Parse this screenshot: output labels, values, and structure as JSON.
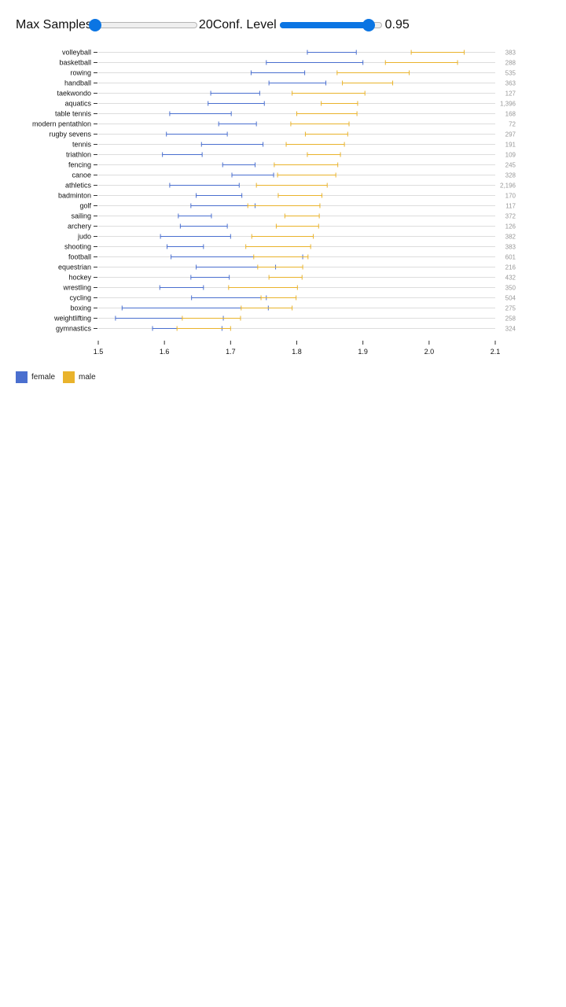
{
  "controls": {
    "max_samples": {
      "label": "Max Samples",
      "value": "20",
      "fraction": 0.0
    },
    "conf_level": {
      "label": "Conf. Level",
      "value": "0.95",
      "fraction": 0.87
    }
  },
  "colors": {
    "female": "#4a6fcf",
    "male": "#e9b32c",
    "grid": "#dddddd",
    "count": "#999999"
  },
  "chart_data": {
    "type": "errorbar",
    "title": "",
    "xlabel": "",
    "ylabel": "",
    "xlim": [
      1.5,
      2.1
    ],
    "xticks": [
      "1.5",
      "1.6",
      "1.7",
      "1.8",
      "1.9",
      "2.0",
      "2.1"
    ],
    "grid": true,
    "legend_position": "bottom-left",
    "series_names": [
      "female",
      "male"
    ],
    "categories": [
      {
        "sport": "volleyball",
        "count": "383",
        "female": [
          1.816,
          1.89
        ],
        "male": [
          1.973,
          2.053
        ]
      },
      {
        "sport": "basketball",
        "count": "288",
        "female": [
          1.754,
          1.9
        ],
        "male": [
          1.934,
          2.043
        ]
      },
      {
        "sport": "rowing",
        "count": "535",
        "female": [
          1.731,
          1.812
        ],
        "male": [
          1.861,
          1.97
        ]
      },
      {
        "sport": "handball",
        "count": "363",
        "female": [
          1.758,
          1.844
        ],
        "male": [
          1.869,
          1.945
        ]
      },
      {
        "sport": "taekwondo",
        "count": "127",
        "female": [
          1.67,
          1.744
        ],
        "male": [
          1.793,
          1.903
        ]
      },
      {
        "sport": "aquatics",
        "count": "1,396",
        "female": [
          1.666,
          1.751
        ],
        "male": [
          1.837,
          1.892
        ]
      },
      {
        "sport": "table tennis",
        "count": "168",
        "female": [
          1.608,
          1.701
        ],
        "male": [
          1.8,
          1.891
        ]
      },
      {
        "sport": "modern pentathlon",
        "count": "72",
        "female": [
          1.682,
          1.739
        ],
        "male": [
          1.791,
          1.879
        ]
      },
      {
        "sport": "rugby sevens",
        "count": "297",
        "female": [
          1.603,
          1.695
        ],
        "male": [
          1.813,
          1.877
        ]
      },
      {
        "sport": "tennis",
        "count": "191",
        "female": [
          1.656,
          1.749
        ],
        "male": [
          1.784,
          1.872
        ]
      },
      {
        "sport": "triathlon",
        "count": "109",
        "female": [
          1.597,
          1.657
        ],
        "male": [
          1.816,
          1.866
        ]
      },
      {
        "sport": "fencing",
        "count": "245",
        "female": [
          1.688,
          1.737
        ],
        "male": [
          1.766,
          1.862
        ]
      },
      {
        "sport": "canoe",
        "count": "328",
        "female": [
          1.702,
          1.765
        ],
        "male": [
          1.771,
          1.859
        ]
      },
      {
        "sport": "athletics",
        "count": "2,196",
        "female": [
          1.608,
          1.713
        ],
        "male": [
          1.739,
          1.846
        ]
      },
      {
        "sport": "badminton",
        "count": "170",
        "female": [
          1.648,
          1.717
        ],
        "male": [
          1.772,
          1.838
        ]
      },
      {
        "sport": "golf",
        "count": "117",
        "female": [
          1.64,
          1.737
        ],
        "male": [
          1.726,
          1.835
        ]
      },
      {
        "sport": "sailing",
        "count": "372",
        "female": [
          1.621,
          1.671
        ],
        "male": [
          1.782,
          1.834
        ]
      },
      {
        "sport": "archery",
        "count": "126",
        "female": [
          1.624,
          1.695
        ],
        "male": [
          1.769,
          1.833
        ]
      },
      {
        "sport": "judo",
        "count": "382",
        "female": [
          1.594,
          1.7
        ],
        "male": [
          1.732,
          1.825
        ]
      },
      {
        "sport": "shooting",
        "count": "383",
        "female": [
          1.604,
          1.659
        ],
        "male": [
          1.723,
          1.821
        ]
      },
      {
        "sport": "football",
        "count": "601",
        "female": [
          1.61,
          1.809
        ],
        "male": [
          1.735,
          1.817
        ]
      },
      {
        "sport": "equestrian",
        "count": "216",
        "female": [
          1.648,
          1.768
        ],
        "male": [
          1.741,
          1.809
        ]
      },
      {
        "sport": "hockey",
        "count": "432",
        "female": [
          1.64,
          1.698
        ],
        "male": [
          1.758,
          1.808
        ]
      },
      {
        "sport": "wrestling",
        "count": "350",
        "female": [
          1.593,
          1.659
        ],
        "male": [
          1.697,
          1.801
        ]
      },
      {
        "sport": "cycling",
        "count": "504",
        "female": [
          1.641,
          1.754
        ],
        "male": [
          1.746,
          1.799
        ]
      },
      {
        "sport": "boxing",
        "count": "275",
        "female": [
          1.536,
          1.757
        ],
        "male": [
          1.716,
          1.793
        ]
      },
      {
        "sport": "weightlifting",
        "count": "258",
        "female": [
          1.526,
          1.689
        ],
        "male": [
          1.627,
          1.715
        ]
      },
      {
        "sport": "gymnastics",
        "count": "324",
        "female": [
          1.582,
          1.687
        ],
        "male": [
          1.619,
          1.7
        ]
      }
    ]
  }
}
